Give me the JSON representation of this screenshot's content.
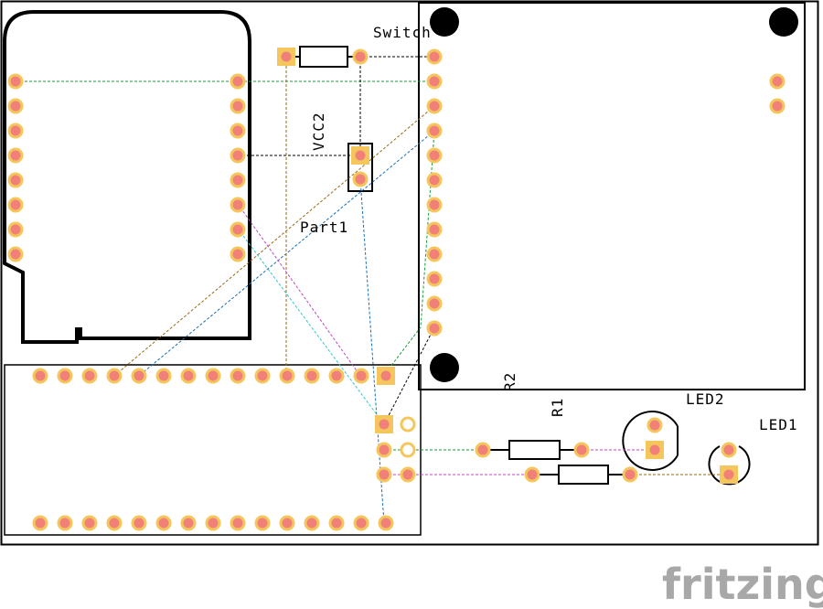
{
  "labels": {
    "switch": "Switch",
    "vcc2": "VCC2",
    "part1": "Part1",
    "r2": "R2",
    "r1": "R1",
    "led2": "LED2",
    "led1": "LED1"
  },
  "branding": {
    "logo_text": "fritzing"
  },
  "colors": {
    "pad_fill": "#f08078",
    "pad_ring": "#f4c65c",
    "outline": "#000000",
    "ratsnest_green": "#1a9a3a",
    "ratsnest_blue": "#1a6fb5",
    "ratsnest_brown": "#9a6a12",
    "ratsnest_magenta": "#c046c0",
    "ratsnest_cyan": "#2ec9c9",
    "ratsnest_black": "#000000",
    "logo": "#a8a8a8"
  }
}
